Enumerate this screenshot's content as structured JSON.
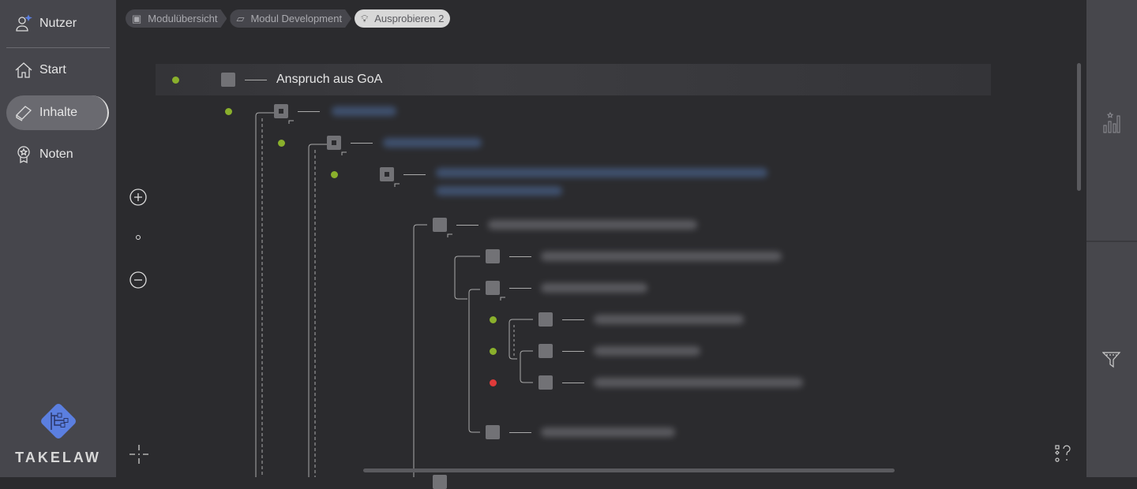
{
  "sidebar": {
    "items": [
      {
        "label": "Nutzer",
        "icon": "user-star-icon"
      },
      {
        "label": "Start",
        "icon": "home-icon"
      },
      {
        "label": "Inhalte",
        "icon": "book-icon",
        "active": true
      },
      {
        "label": "Noten",
        "icon": "award-icon"
      }
    ],
    "brand": "TAKELAW"
  },
  "breadcrumb": [
    {
      "label": "Modulübersicht",
      "icon": "box-icon"
    },
    {
      "label": "Modul Development",
      "icon": "book-icon"
    },
    {
      "label": "Ausprobieren 2",
      "icon": "lightbulb-icon"
    }
  ],
  "tree": {
    "root": {
      "label": "Anspruch aus GoA",
      "status": "green"
    },
    "status_colors": {
      "green": "#8ab02c",
      "red": "#e03a3a"
    }
  },
  "colors": {
    "accent": "#5b7fe0"
  }
}
